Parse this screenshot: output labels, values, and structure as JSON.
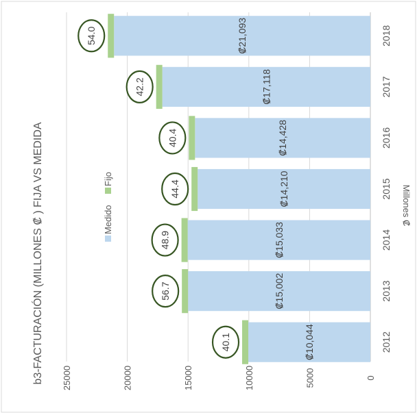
{
  "chart_data": {
    "type": "bar",
    "orientation": "rotated-horizontal",
    "title": "b3-FACTURACIÓN (MILLONES ₡ ) FIJA VS MEDIDA",
    "ylabel": "Millones ₡",
    "xlabel": "",
    "ylim": [
      0,
      25000
    ],
    "yticks": [
      0,
      5000,
      10000,
      15000,
      20000,
      25000
    ],
    "grid": true,
    "legend": {
      "position": "top",
      "entries": [
        "Medido",
        "Fijo"
      ]
    },
    "categories": [
      "2012",
      "2013",
      "2014",
      "2015",
      "2016",
      "2017",
      "2018"
    ],
    "series": [
      {
        "name": "Medido",
        "color": "#bdd7ee",
        "values": [
          10044,
          15002,
          15033,
          14210,
          14428,
          17118,
          21093
        ],
        "labels": [
          "₡10,044",
          "₡15,002",
          "₡15,033",
          "₡14,210",
          "₡14,428",
          "₡17,118",
          "₡21,093"
        ]
      },
      {
        "name": "Fijo",
        "color": "#a9d18e",
        "values": [
          40.1,
          56.7,
          48.9,
          44.4,
          40.4,
          42.2,
          54.0
        ],
        "labels": [
          "40.1",
          "56.7",
          "48.9",
          "44.4",
          "40.4",
          "42.2",
          "54.0"
        ]
      }
    ],
    "annotations": {
      "style": "ellipse",
      "color": "#375623",
      "target": "Fijo labels"
    }
  }
}
